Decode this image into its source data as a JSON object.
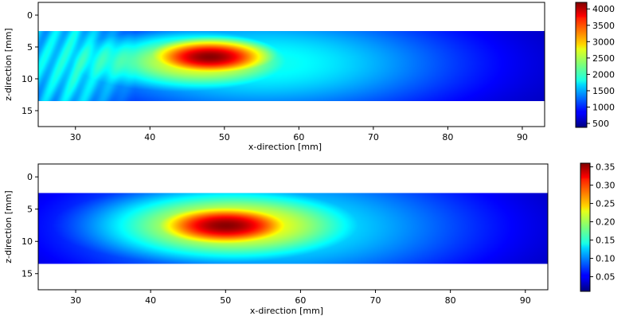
{
  "chart_data": [
    {
      "type": "heatmap",
      "title": "",
      "xlabel": "x-direction [mm]",
      "ylabel": "z-direction [mm]",
      "xlim": [
        25,
        93
      ],
      "ylim": [
        17.5,
        -2
      ],
      "data_extent": {
        "x": [
          25,
          93
        ],
        "z": [
          2.5,
          13.5
        ]
      },
      "x_ticks": [
        30,
        40,
        50,
        60,
        70,
        80,
        90
      ],
      "y_ticks": [
        0,
        5,
        10,
        15
      ],
      "colormap": "jet",
      "colorbar": {
        "min": 380,
        "max": 4200,
        "ticks": [
          500,
          1000,
          1500,
          2000,
          2500,
          3000,
          3500,
          4000
        ]
      },
      "peak": {
        "x": 48,
        "z": 6.5,
        "value": 4200
      },
      "grid": false
    },
    {
      "type": "heatmap",
      "title": "",
      "xlabel": "x-direction [mm]",
      "ylabel": "z-direction [mm]",
      "xlim": [
        25,
        93
      ],
      "ylim": [
        17.5,
        -2
      ],
      "data_extent": {
        "x": [
          25,
          93
        ],
        "z": [
          2.5,
          13.5
        ]
      },
      "x_ticks": [
        30,
        40,
        50,
        60,
        70,
        80,
        90
      ],
      "y_ticks": [
        0,
        5,
        10,
        15
      ],
      "colormap": "jet",
      "colorbar": {
        "min": 0.01,
        "max": 0.36,
        "ticks": [
          0.05,
          0.1,
          0.15,
          0.2,
          0.25,
          0.3,
          0.35
        ]
      },
      "peak": {
        "x": 50,
        "z": 7.5,
        "value": 0.36
      },
      "grid": false
    }
  ]
}
